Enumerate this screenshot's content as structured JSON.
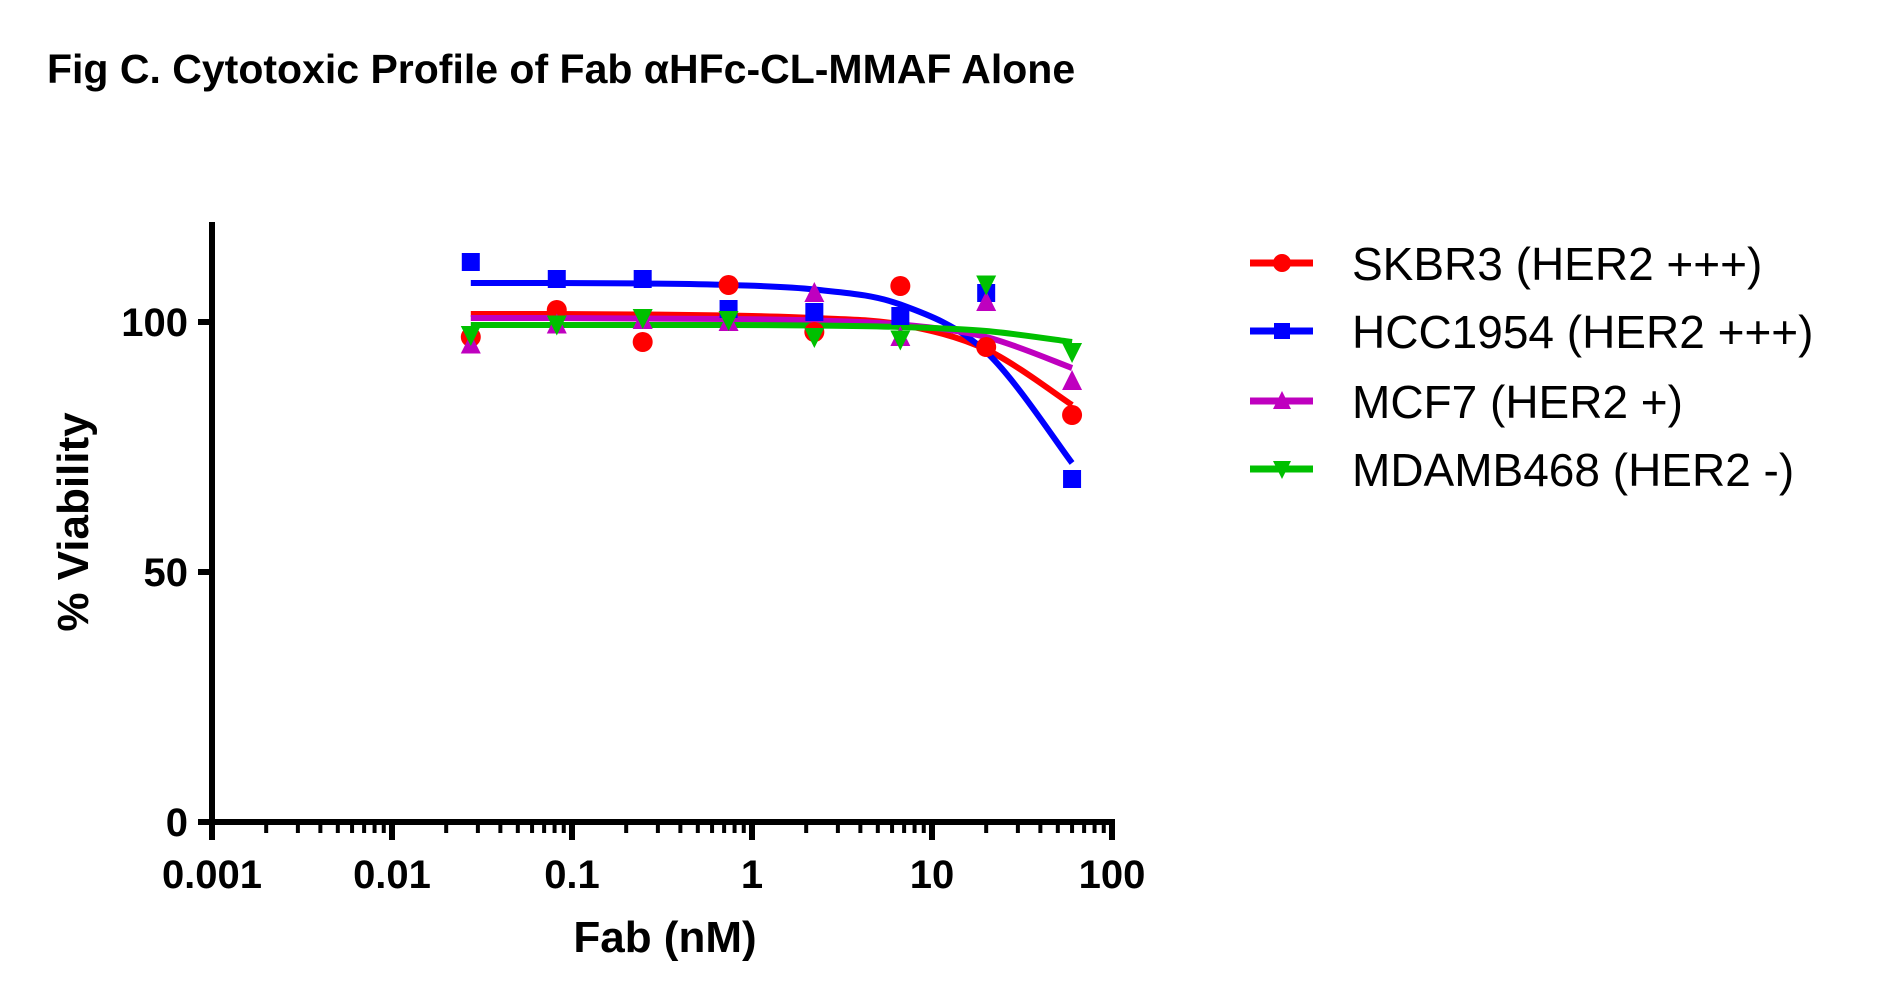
{
  "chart_data": {
    "type": "scatter",
    "title": "Fig C. Cytotoxic Profile of Fab αHFc-CL-MMAF Alone",
    "xlabel": "Fab (nM)",
    "ylabel": "% Viability",
    "xscale": "log",
    "xlim": [
      0.001,
      100
    ],
    "ylim": [
      0,
      120
    ],
    "xticks": [
      0.001,
      0.01,
      0.1,
      1,
      10,
      100
    ],
    "xtick_labels": [
      "0.001",
      "0.01",
      "0.1",
      "1",
      "10",
      "100"
    ],
    "yticks": [
      0,
      50,
      100
    ],
    "ytick_labels": [
      "0",
      "50",
      "100"
    ],
    "grid": false,
    "legend_position": "right",
    "x": [
      0.0274,
      0.0823,
      0.247,
      0.741,
      2.22,
      6.67,
      20,
      60
    ],
    "series": [
      {
        "name": "SKBR3 (HER2 +++)",
        "color": "#ff0000",
        "marker": "circle",
        "values": [
          97,
          102.4,
          96,
          107.4,
          98,
          107.2,
          95,
          81.4
        ],
        "fit": [
          101.6,
          101.6,
          101.5,
          101.3,
          100.8,
          99.5,
          94.5,
          83.4
        ]
      },
      {
        "name": "HCC1954 (HER2 +++)",
        "color": "#0000ff",
        "marker": "square",
        "values": [
          112,
          108.6,
          108.6,
          102.6,
          102,
          101.2,
          105.8,
          68.6
        ],
        "fit": [
          107.8,
          107.8,
          107.7,
          107.4,
          106.5,
          103.5,
          94,
          71.8
        ]
      },
      {
        "name": "MCF7 (HER2 +)",
        "color": "#bf00bf",
        "marker": "triangle-up",
        "values": [
          95.5,
          99.5,
          100.4,
          100,
          105.8,
          97,
          104,
          88.2
        ],
        "fit": [
          100.8,
          100.8,
          100.7,
          100.6,
          100.3,
          99.5,
          97,
          90.8
        ]
      },
      {
        "name": "MDAMB468 (HER2 -)",
        "color": "#00c000",
        "marker": "triangle-down",
        "values": [
          97.4,
          99.5,
          100.8,
          100.4,
          97,
          96.5,
          107.5,
          94
        ],
        "fit": [
          99.4,
          99.4,
          99.4,
          99.4,
          99.3,
          99,
          98.2,
          96
        ]
      }
    ]
  }
}
